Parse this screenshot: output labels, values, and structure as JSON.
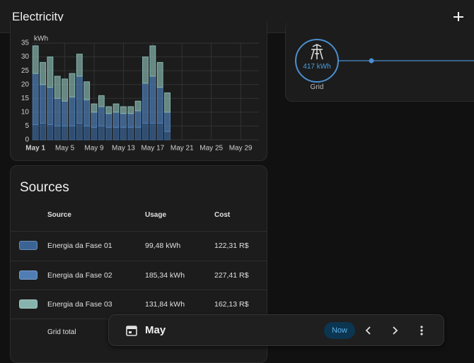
{
  "header": {
    "title": "Electricity"
  },
  "chart_data": {
    "type": "bar",
    "stacked": true,
    "y_label": "kWh",
    "categories": [
      "May 1",
      null,
      null,
      null,
      "May 5",
      null,
      null,
      null,
      "May 9",
      null,
      null,
      null,
      "May 13",
      null,
      null,
      null,
      "May 17",
      null,
      null,
      null,
      "May 21",
      null,
      null,
      null,
      "May 25",
      null,
      null,
      null,
      "May 29",
      null,
      null
    ],
    "series": [
      {
        "name": "Energia da Fase 01",
        "color": "#3a6494",
        "values": [
          5.5,
          6,
          5.5,
          5,
          5,
          5,
          6,
          5,
          4.5,
          5,
          4.5,
          4.5,
          4.5,
          4.5,
          4.5,
          6,
          6,
          6,
          3,
          null,
          null,
          null,
          null,
          null,
          null,
          null,
          null,
          null,
          null,
          null,
          null
        ]
      },
      {
        "name": "Energia da Fase 02",
        "color": "#4f7db4",
        "values": [
          18.5,
          14,
          13.5,
          10,
          9,
          10.5,
          17,
          9.5,
          5.5,
          7,
          5,
          5.5,
          5,
          5,
          6,
          14.5,
          17,
          13,
          7,
          null,
          null,
          null,
          null,
          null,
          null,
          null,
          null,
          null,
          null,
          null,
          null
        ]
      },
      {
        "name": "Energia da Fase 03",
        "color": "#86b3ad",
        "values": [
          10,
          8,
          11,
          8,
          8,
          8.5,
          8,
          6.5,
          3,
          4,
          2.5,
          3,
          2.5,
          2.5,
          3.5,
          9.5,
          11,
          9,
          7,
          null,
          null,
          null,
          null,
          null,
          null,
          null,
          null,
          null,
          null,
          null,
          null
        ]
      }
    ],
    "ylim": [
      0,
      35
    ],
    "yticks": [
      0,
      5,
      10,
      15,
      20,
      25,
      30,
      35
    ],
    "grid": true
  },
  "grid_node": {
    "value": "417 kWh",
    "label": "Grid"
  },
  "sources": {
    "title": "Sources",
    "columns": [
      "Source",
      "Usage",
      "Cost"
    ],
    "rows": [
      [
        "Energia da Fase 01",
        "99,48 kWh",
        "122,31 R$"
      ],
      [
        "Energia da Fase 02",
        "185,34 kWh",
        "227,41 R$"
      ],
      [
        "Energia da Fase 03",
        "131,84 kWh",
        "162,13 R$"
      ]
    ],
    "total": "Grid total"
  },
  "date_bar": {
    "period": "May",
    "now": "Now"
  }
}
